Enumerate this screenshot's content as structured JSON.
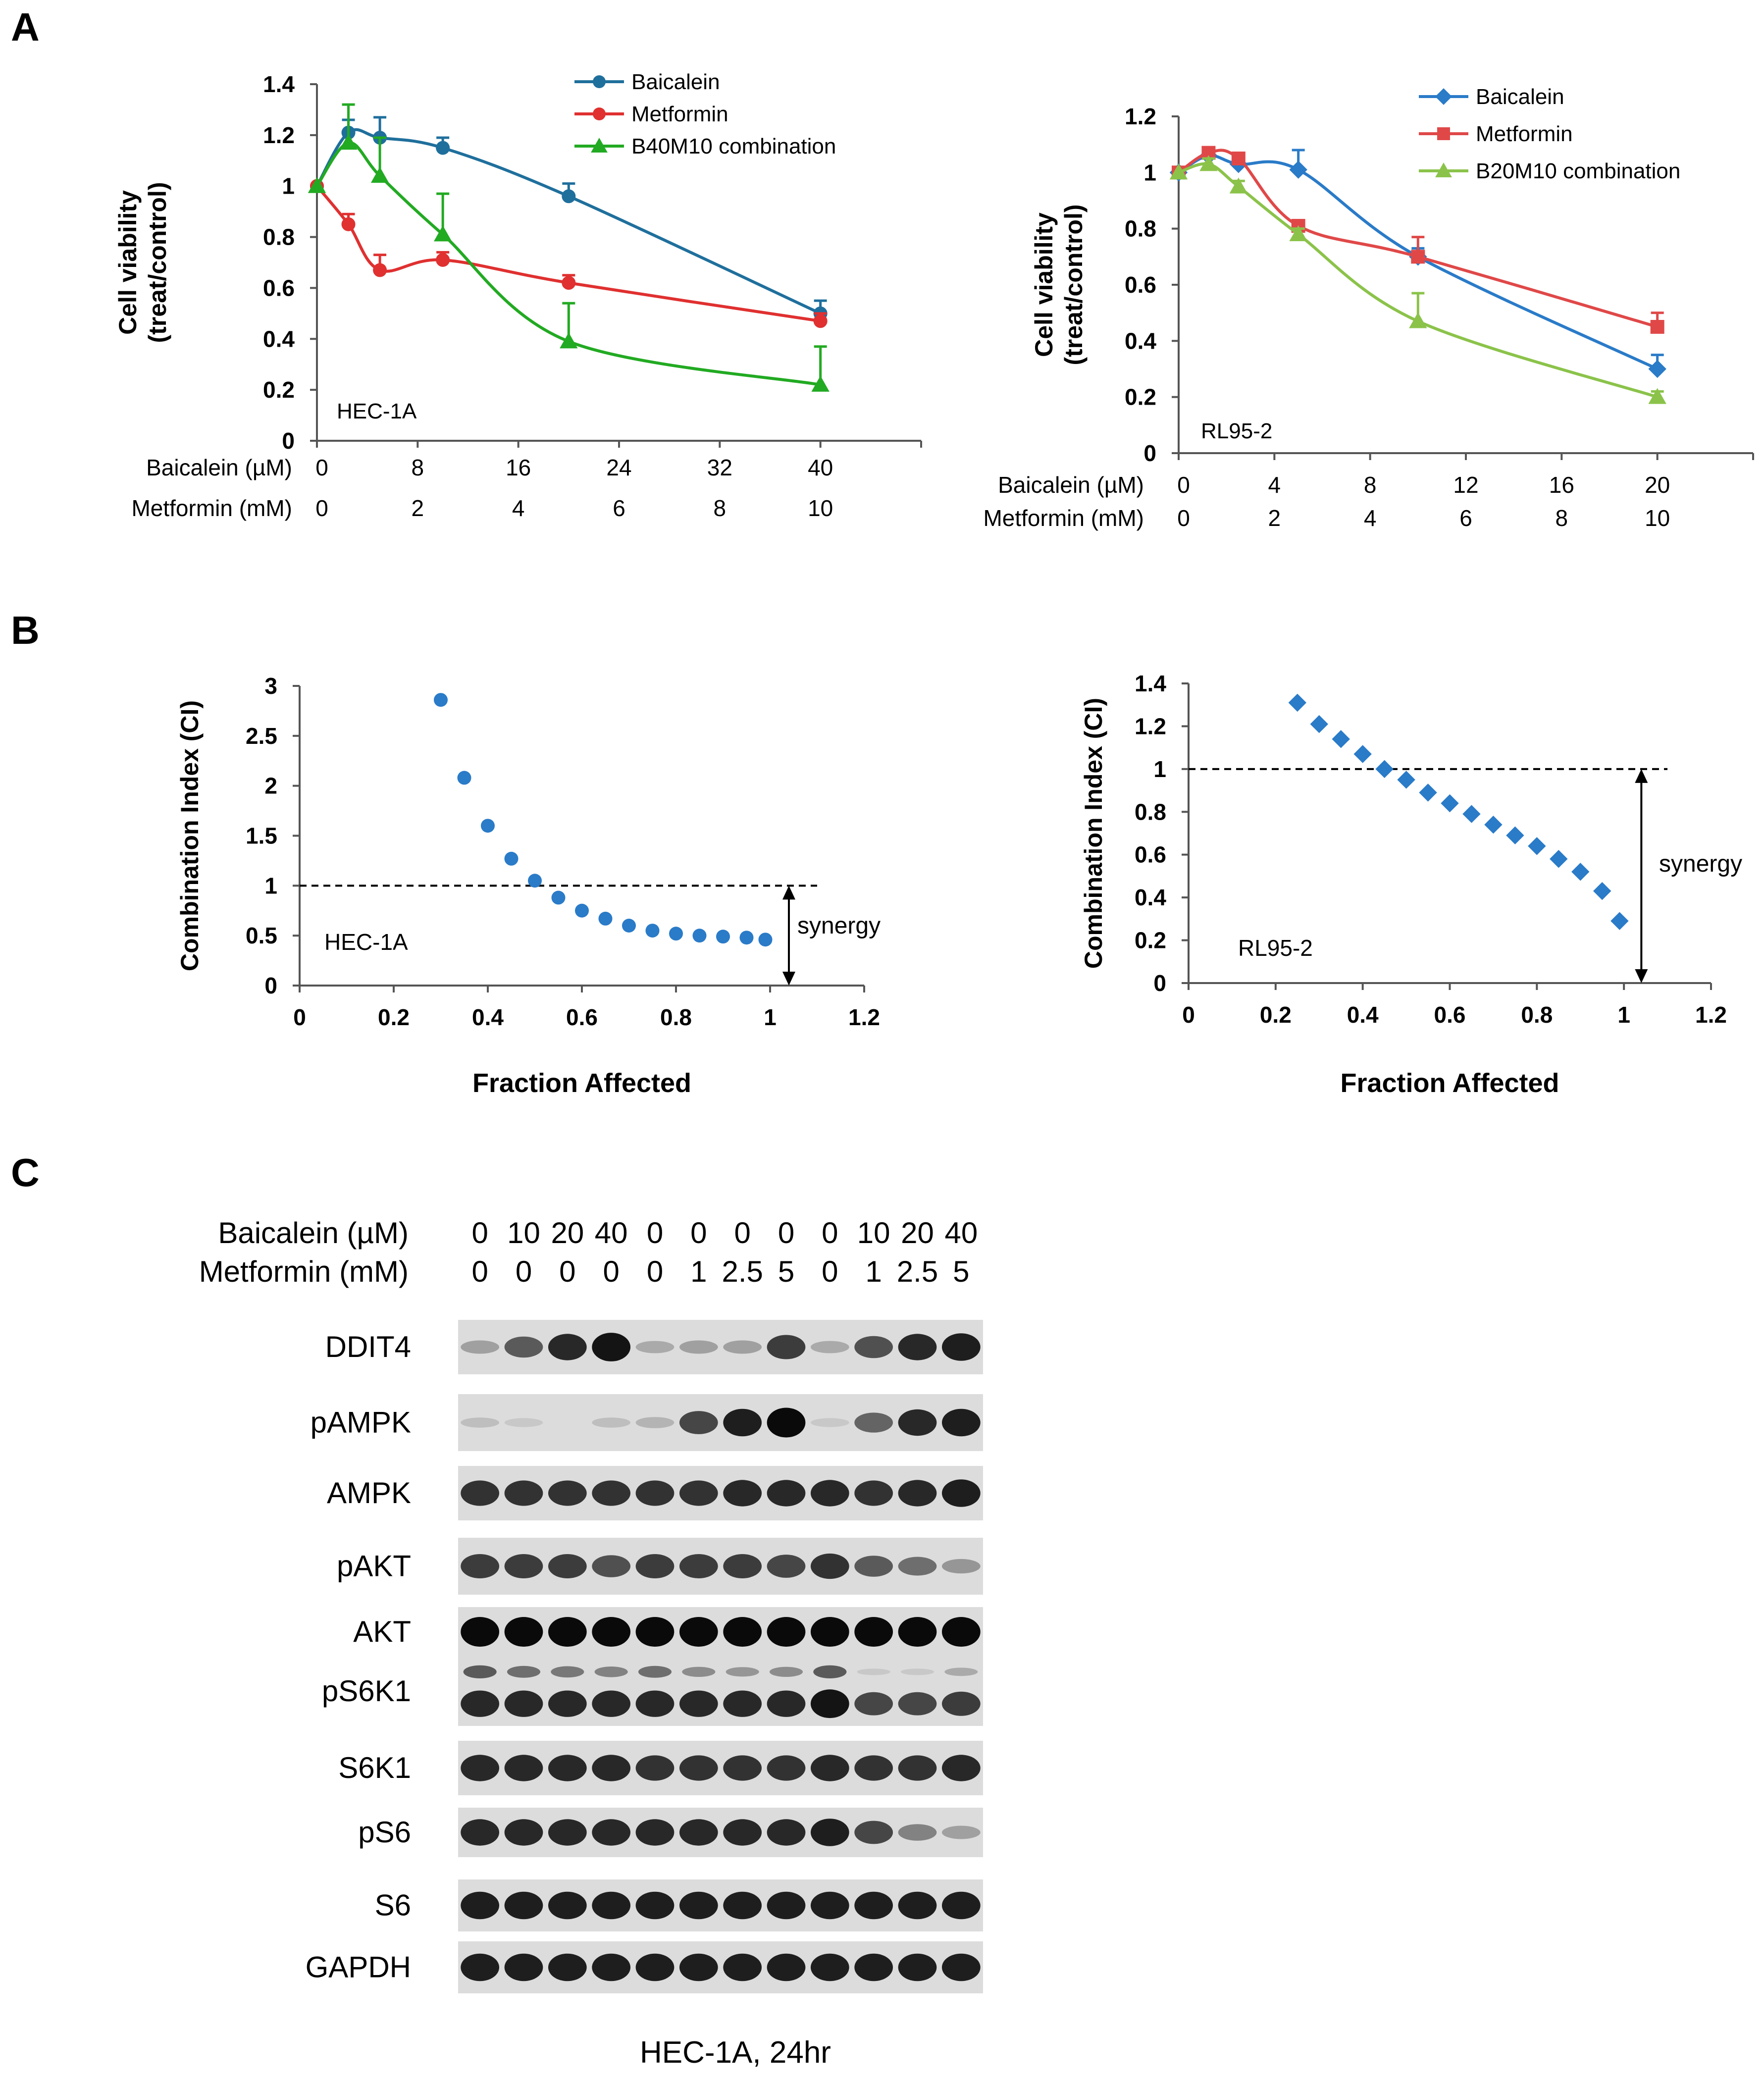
{
  "figure": {
    "panel_labels": [
      "A",
      "B",
      "C"
    ],
    "colors": {
      "baicalein_A": "#1f6f9c",
      "metformin_A": "#e03030",
      "combo_A": "#22aa22",
      "baicalein_A2": "#2a7bc8",
      "metformin_A2": "#e04848",
      "combo_A2": "#8bc34a",
      "ci_points": "#2a7bc8",
      "axis": "#555555"
    }
  },
  "chart_data": [
    {
      "id": "A1",
      "type": "line",
      "cell_line": "HEC-1A",
      "ylabel_lines": [
        "Cell viability",
        "(treat/control)"
      ],
      "ylim": [
        0,
        1.4
      ],
      "yticks": [
        "0",
        "0.2",
        "0.4",
        "0.6",
        "0.8",
        "1",
        "1.2",
        "1.4"
      ],
      "x_axis_rows": [
        {
          "label": "Baicalein (µM)",
          "ticks": [
            "0",
            "8",
            "16",
            "24",
            "32",
            "40"
          ]
        },
        {
          "label": "Metformin (mM)",
          "ticks": [
            "0",
            "2",
            "4",
            "6",
            "8",
            "10"
          ]
        }
      ],
      "xlim": [
        0,
        48
      ],
      "series": [
        {
          "name": "Baicalein",
          "marker": "circle",
          "x": [
            0,
            2.5,
            5,
            10,
            20,
            40
          ],
          "y": [
            1.0,
            1.21,
            1.19,
            1.15,
            0.96,
            0.5
          ],
          "err": [
            0.0,
            0.05,
            0.08,
            0.04,
            0.05,
            0.05
          ]
        },
        {
          "name": "Metformin",
          "marker": "circle",
          "x": [
            0,
            2.5,
            5,
            10,
            20,
            40
          ],
          "y": [
            1.0,
            0.85,
            0.67,
            0.71,
            0.62,
            0.47
          ],
          "err": [
            0.0,
            0.04,
            0.06,
            0.03,
            0.03,
            0.03
          ]
        },
        {
          "name": "B40M10 combination",
          "marker": "triangle",
          "x": [
            0,
            2.5,
            5,
            10,
            20,
            40
          ],
          "y": [
            1.0,
            1.17,
            1.04,
            0.81,
            0.39,
            0.22
          ],
          "err": [
            0.0,
            0.15,
            0.15,
            0.16,
            0.15,
            0.15
          ]
        }
      ]
    },
    {
      "id": "A2",
      "type": "line",
      "cell_line": "RL95-2",
      "ylabel_lines": [
        "Cell viability",
        "(treat/control)"
      ],
      "ylim": [
        0,
        1.2
      ],
      "yticks": [
        "0",
        "0.2",
        "0.4",
        "0.6",
        "0.8",
        "1",
        "1.2"
      ],
      "x_axis_rows": [
        {
          "label": "Baicalein (µM)",
          "ticks": [
            "0",
            "4",
            "8",
            "12",
            "16",
            "20"
          ]
        },
        {
          "label": "Metformin (mM)",
          "ticks": [
            "0",
            "2",
            "4",
            "6",
            "8",
            "10"
          ]
        }
      ],
      "xlim": [
        0,
        24
      ],
      "series": [
        {
          "name": "Baicalein",
          "marker": "diamond",
          "x": [
            0,
            1.25,
            2.5,
            5,
            10,
            20
          ],
          "y": [
            1.0,
            1.06,
            1.03,
            1.01,
            0.7,
            0.3
          ],
          "err": [
            0.0,
            0.02,
            0.02,
            0.07,
            0.03,
            0.05
          ]
        },
        {
          "name": "Metformin",
          "marker": "square",
          "x": [
            0,
            1.25,
            2.5,
            5,
            10,
            20
          ],
          "y": [
            1.0,
            1.07,
            1.05,
            0.81,
            0.7,
            0.45
          ],
          "err": [
            0.0,
            0.02,
            0.02,
            0.02,
            0.07,
            0.05
          ]
        },
        {
          "name": "B20M10 combination",
          "marker": "triangle",
          "x": [
            0,
            1.25,
            2.5,
            5,
            10,
            20
          ],
          "y": [
            1.0,
            1.03,
            0.95,
            0.78,
            0.47,
            0.2
          ],
          "err": [
            0.0,
            0.02,
            0.02,
            0.02,
            0.1,
            0.02
          ]
        }
      ]
    },
    {
      "id": "B1",
      "type": "scatter",
      "cell_line": "HEC-1A",
      "ylabel": "Combination Index (CI)",
      "xlabel": "Fraction Affected",
      "xlim": [
        0,
        1.2
      ],
      "ylim": [
        0,
        3
      ],
      "xticks": [
        "0",
        "0.2",
        "0.4",
        "0.6",
        "0.8",
        "1",
        "1.2"
      ],
      "yticks": [
        "0",
        "0.5",
        "1",
        "1.5",
        "2",
        "2.5",
        "3"
      ],
      "reference_line": 1,
      "annotation": "synergy",
      "marker": "circle",
      "x": [
        0.3,
        0.35,
        0.4,
        0.45,
        0.5,
        0.55,
        0.6,
        0.65,
        0.7,
        0.75,
        0.8,
        0.85,
        0.9,
        0.95,
        0.99
      ],
      "y": [
        2.86,
        2.08,
        1.6,
        1.27,
        1.05,
        0.88,
        0.75,
        0.67,
        0.6,
        0.55,
        0.52,
        0.5,
        0.49,
        0.48,
        0.46
      ]
    },
    {
      "id": "B2",
      "type": "scatter",
      "cell_line": "RL95-2",
      "ylabel": "Combination Index (CI)",
      "xlabel": "Fraction Affected",
      "xlim": [
        0,
        1.2
      ],
      "ylim": [
        0,
        1.4
      ],
      "xticks": [
        "0",
        "0.2",
        "0.4",
        "0.6",
        "0.8",
        "1",
        "1.2"
      ],
      "yticks": [
        "0",
        "0.2",
        "0.4",
        "0.6",
        "0.8",
        "1",
        "1.2",
        "1.4"
      ],
      "reference_line": 1,
      "annotation": "synergy",
      "marker": "diamond",
      "x": [
        0.25,
        0.3,
        0.35,
        0.4,
        0.45,
        0.5,
        0.55,
        0.6,
        0.65,
        0.7,
        0.75,
        0.8,
        0.85,
        0.9,
        0.95,
        0.99
      ],
      "y": [
        1.31,
        1.21,
        1.14,
        1.07,
        1.0,
        0.95,
        0.89,
        0.84,
        0.79,
        0.74,
        0.69,
        0.64,
        0.58,
        0.52,
        0.43,
        0.29
      ]
    }
  ],
  "western": {
    "baicalein_label": "Baicalein (µM)",
    "metformin_label": "Metformin (mM)",
    "baicalein": [
      "0",
      "10",
      "20",
      "40",
      "0",
      "0",
      "0",
      "0",
      "0",
      "10",
      "20",
      "40"
    ],
    "metformin": [
      "0",
      "0",
      "0",
      "0",
      "0",
      "1",
      "2.5",
      "5",
      "0",
      "1",
      "2.5",
      "5"
    ],
    "caption": "HEC-1A, 24hr",
    "blots": [
      {
        "name": "DDIT4",
        "intensities": [
          0.25,
          0.6,
          0.85,
          0.95,
          0.2,
          0.25,
          0.25,
          0.75,
          0.2,
          0.65,
          0.85,
          0.9
        ],
        "doublet": false
      },
      {
        "name": "pAMPK",
        "intensities": [
          0.1,
          0.05,
          0.0,
          0.1,
          0.15,
          0.7,
          0.9,
          1.0,
          0.05,
          0.55,
          0.85,
          0.9
        ],
        "doublet": false
      },
      {
        "name": "AMPK",
        "intensities": [
          0.8,
          0.8,
          0.8,
          0.8,
          0.8,
          0.8,
          0.85,
          0.85,
          0.85,
          0.8,
          0.85,
          0.9
        ],
        "doublet": false
      },
      {
        "name": "pAKT",
        "intensities": [
          0.75,
          0.75,
          0.75,
          0.65,
          0.75,
          0.75,
          0.75,
          0.7,
          0.8,
          0.6,
          0.5,
          0.3
        ],
        "doublet": false
      },
      {
        "name": "AKT",
        "intensities": [
          1.0,
          1.0,
          1.0,
          1.0,
          1.0,
          1.0,
          1.0,
          1.0,
          1.0,
          1.0,
          1.0,
          1.0
        ],
        "doublet": false
      },
      {
        "name": "pS6K1",
        "intensities": [
          0.85,
          0.85,
          0.85,
          0.85,
          0.85,
          0.85,
          0.85,
          0.85,
          0.95,
          0.7,
          0.7,
          0.75
        ],
        "doublet": true,
        "upper": [
          0.6,
          0.5,
          0.45,
          0.4,
          0.5,
          0.35,
          0.3,
          0.35,
          0.6,
          0.05,
          0.05,
          0.2
        ]
      },
      {
        "name": "S6K1",
        "intensities": [
          0.85,
          0.85,
          0.85,
          0.85,
          0.8,
          0.8,
          0.8,
          0.8,
          0.85,
          0.8,
          0.8,
          0.85
        ],
        "doublet": false
      },
      {
        "name": "pS6",
        "intensities": [
          0.85,
          0.85,
          0.85,
          0.85,
          0.85,
          0.85,
          0.85,
          0.85,
          0.9,
          0.7,
          0.4,
          0.25
        ],
        "doublet": false
      },
      {
        "name": "S6",
        "intensities": [
          0.9,
          0.9,
          0.9,
          0.9,
          0.9,
          0.9,
          0.9,
          0.9,
          0.9,
          0.9,
          0.9,
          0.9
        ],
        "doublet": false
      },
      {
        "name": "GAPDH",
        "intensities": [
          0.9,
          0.9,
          0.9,
          0.9,
          0.9,
          0.9,
          0.9,
          0.9,
          0.9,
          0.9,
          0.9,
          0.9
        ],
        "doublet": false
      }
    ]
  }
}
